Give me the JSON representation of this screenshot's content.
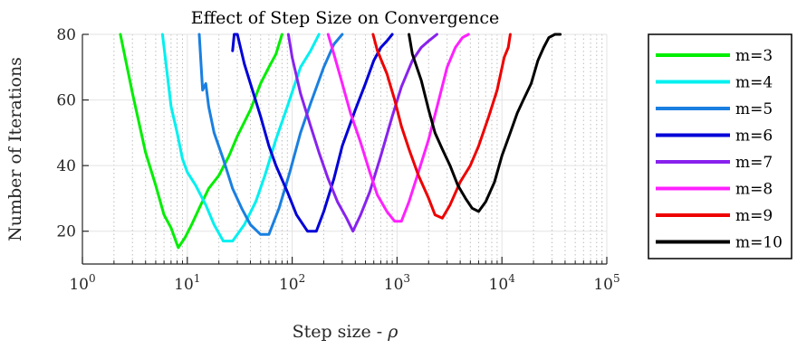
{
  "chart_data": {
    "type": "line",
    "title": "Effect of Step Size on Convergence",
    "xlabel": "Step size - ",
    "xlabel_symbol": "ρ",
    "ylabel": "Number of Iterations",
    "x_scale": "log",
    "xlim": [
      1,
      100000
    ],
    "ylim": [
      10,
      80
    ],
    "x_ticks": [
      {
        "value": 1,
        "base": "10",
        "exp": "0"
      },
      {
        "value": 10,
        "base": "10",
        "exp": "1"
      },
      {
        "value": 100,
        "base": "10",
        "exp": "2"
      },
      {
        "value": 1000,
        "base": "10",
        "exp": "3"
      },
      {
        "value": 10000,
        "base": "10",
        "exp": "4"
      },
      {
        "value": 100000,
        "base": "10",
        "exp": "5"
      }
    ],
    "y_ticks": [
      {
        "value": 20,
        "label": "20"
      },
      {
        "value": 40,
        "label": "40"
      },
      {
        "value": 60,
        "label": "60"
      },
      {
        "value": 80,
        "label": "80"
      }
    ],
    "grid": true,
    "legend_position": "outside-right",
    "series": [
      {
        "name": "m=3",
        "color": "#00ee00",
        "x": [
          2.3,
          3,
          4,
          5,
          6,
          7,
          8.2,
          9.5,
          11,
          13,
          16,
          20,
          25,
          30,
          40,
          50,
          60,
          70,
          80
        ],
        "y": [
          80,
          62,
          44,
          34,
          25,
          21,
          15,
          18,
          22,
          27,
          33,
          37,
          43,
          49,
          57,
          65,
          70,
          74,
          80
        ]
      },
      {
        "name": "m=4",
        "color": "#00f0f0",
        "x": [
          5.8,
          7,
          8,
          9,
          10,
          12,
          15,
          18,
          22,
          27,
          35,
          45,
          55,
          70,
          90,
          120,
          150,
          180
        ],
        "y": [
          80,
          58,
          50,
          42,
          38,
          34,
          28,
          22,
          17,
          17,
          22,
          29,
          37,
          48,
          58,
          70,
          75,
          80
        ]
      },
      {
        "name": "m=5",
        "color": "#1a7fe0",
        "x": [
          13,
          14,
          15,
          16,
          18,
          22,
          27,
          33,
          40,
          50,
          60,
          75,
          95,
          120,
          150,
          200,
          250,
          300
        ],
        "y": [
          80,
          63,
          65,
          58,
          50,
          42,
          33,
          27,
          22,
          19,
          19,
          27,
          38,
          50,
          59,
          70,
          77,
          80
        ]
      },
      {
        "name": "m=6",
        "color": "#0000d8",
        "x": [
          27,
          28,
          30,
          35,
          40,
          50,
          60,
          70,
          90,
          110,
          140,
          170,
          200,
          250,
          300,
          400,
          500,
          600,
          700,
          800,
          900
        ],
        "y": [
          75,
          80,
          80,
          71,
          65,
          55,
          46,
          40,
          32,
          25,
          20,
          20,
          26,
          36,
          46,
          57,
          65,
          72,
          76,
          78,
          80
        ]
      },
      {
        "name": "m=7",
        "color": "#8822ee",
        "x": [
          92,
          100,
          120,
          150,
          180,
          220,
          270,
          330,
          380,
          450,
          550,
          700,
          900,
          1100,
          1400,
          1700,
          2000,
          2400
        ],
        "y": [
          80,
          73,
          62,
          52,
          44,
          36,
          29,
          24,
          20,
          25,
          32,
          43,
          55,
          64,
          72,
          76,
          78,
          80
        ]
      },
      {
        "name": "m=8",
        "color": "#ff20ff",
        "x": [
          220,
          250,
          300,
          360,
          450,
          550,
          650,
          800,
          950,
          1100,
          1300,
          1600,
          2000,
          2500,
          3000,
          3600,
          4200,
          4800
        ],
        "y": [
          80,
          74,
          65,
          56,
          47,
          38,
          31,
          26,
          23,
          23,
          29,
          38,
          48,
          60,
          70,
          76,
          79,
          80
        ]
      },
      {
        "name": "m=9",
        "color": "#ee0000",
        "x": [
          590,
          650,
          800,
          950,
          1100,
          1300,
          1600,
          2000,
          2300,
          2700,
          3200,
          4000,
          5000,
          6000,
          7500,
          9000,
          10500,
          11500,
          12000
        ],
        "y": [
          80,
          75,
          68,
          60,
          52,
          45,
          37,
          30,
          25,
          24,
          28,
          35,
          40,
          46,
          55,
          63,
          73,
          76,
          80
        ]
      },
      {
        "name": "m=10",
        "color": "#000000",
        "x": [
          1300,
          1400,
          1700,
          2000,
          2300,
          2700,
          3200,
          3800,
          4500,
          5200,
          6000,
          7000,
          8500,
          10000,
          12000,
          14000,
          16000,
          19000,
          22000,
          25000,
          28000,
          32000,
          36000
        ],
        "y": [
          80,
          74,
          66,
          57,
          50,
          45,
          40,
          34,
          30,
          27,
          26,
          29,
          35,
          43,
          50,
          56,
          60,
          65,
          72,
          76,
          79,
          80,
          80
        ]
      }
    ]
  }
}
